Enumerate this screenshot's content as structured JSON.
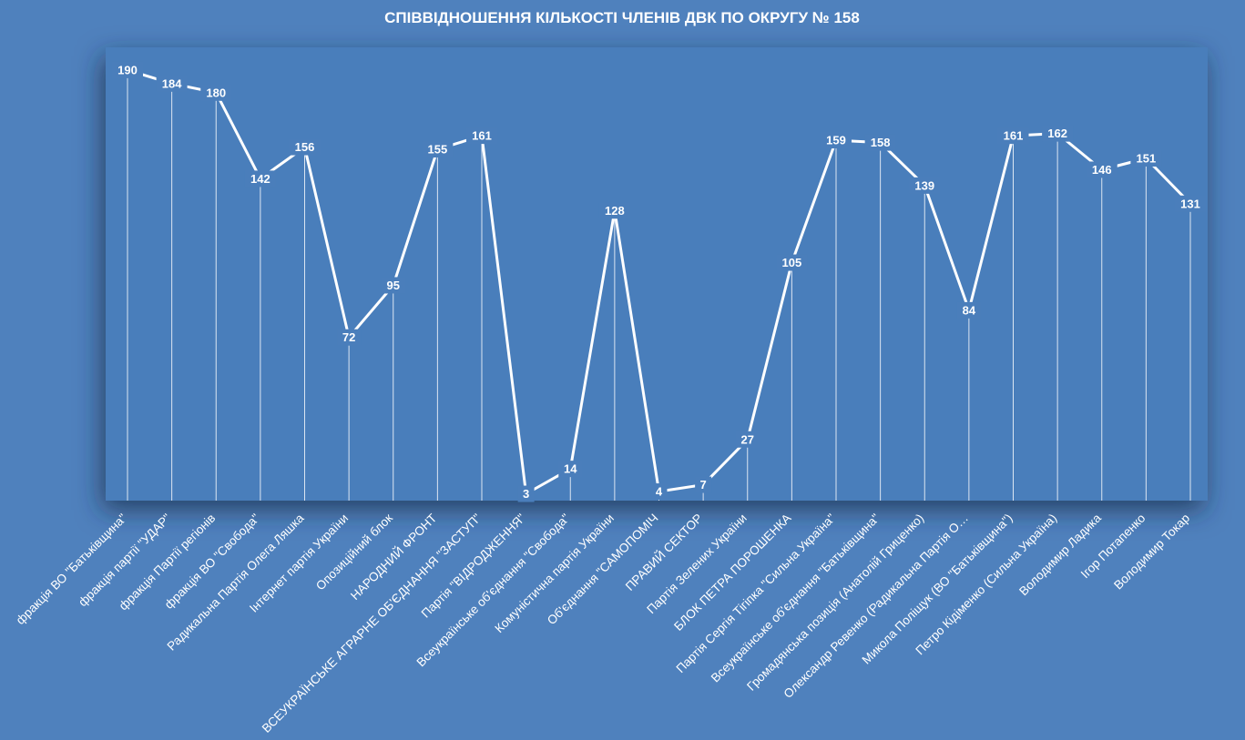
{
  "chart_data": {
    "type": "line",
    "title": "СПІВВІДНОШЕННЯ КІЛЬКОСТІ ЧЛЕНІВ ДВК ПО ОКРУГУ № 158",
    "xlabel": "",
    "ylabel": "",
    "ylim": [
      0,
      200
    ],
    "grid": false,
    "legend": "none",
    "drop_lines": true,
    "colors": {
      "background": "#4f81bd",
      "plot_area": "#4a7ebb",
      "line": "#ffffff",
      "text": "#ffffff"
    },
    "categories": [
      "фракція ВО \"Батьківщина\"",
      "фракція партії \"УДАР\"",
      "фракція Партії регіонів",
      "фракція ВО \"Свобода\"",
      "Радикальна Партія Олега Ляшка",
      "Інтернет партія України",
      "Опозиційний блок",
      "НАРОДНИЙ ФРОНТ",
      "ВСЕУКРАЇНСЬКЕ АГРАРНЕ ОБ'ЄДНАННЯ \"ЗАСТУП\"",
      "Партія \"ВІДРОДЖЕННЯ\"",
      "Всеукраїнське об'єднання \"Свобода\"",
      "Комуністична партія України",
      "Об'єднання \"САМОПОМІЧ",
      "ПРАВИЙ СЕКТОР",
      "Партія Зелених України",
      "БЛОК ПЕТРА ПОРОШЕНКА",
      "Партія Сергія Тігіпка \"Сильна Україна\"",
      "Всеукраїнське об'єднання \"Батьківщина\"",
      "Громадянська позиція (Анатолій Гриценко)",
      "Олександр Ревенко (Радикальна Партія О…",
      "Микола Поліщук (ВО \"Батьківщина\")",
      "Петро Кідіменко (Сильна Україна)",
      "Володимир Ладика",
      "Ігор Потапенко",
      "Володимир Токар"
    ],
    "series": [
      {
        "values": [
          190,
          184,
          180,
          142,
          156,
          72,
          95,
          155,
          161,
          3,
          14,
          128,
          4,
          7,
          27,
          105,
          159,
          158,
          139,
          84,
          161,
          162,
          146,
          151,
          131
        ]
      }
    ]
  }
}
